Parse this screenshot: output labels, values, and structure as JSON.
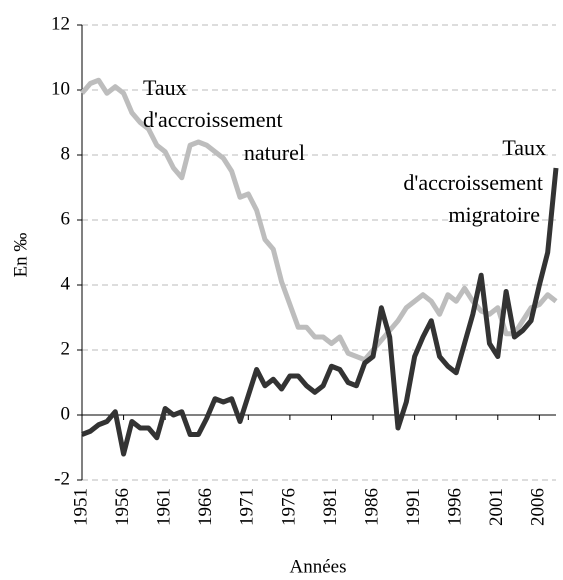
{
  "chart_data": {
    "type": "line",
    "xlabel": "Années",
    "ylabel": "En ‰",
    "x": [
      1951,
      1952,
      1953,
      1954,
      1955,
      1956,
      1957,
      1958,
      1959,
      1960,
      1961,
      1962,
      1963,
      1964,
      1965,
      1966,
      1967,
      1968,
      1969,
      1970,
      1971,
      1972,
      1973,
      1974,
      1975,
      1976,
      1977,
      1978,
      1979,
      1980,
      1981,
      1982,
      1983,
      1984,
      1985,
      1986,
      1987,
      1988,
      1989,
      1990,
      1991,
      1992,
      1993,
      1994,
      1995,
      1996,
      1997,
      1998,
      1999,
      2000,
      2001,
      2002,
      2003,
      2004,
      2005,
      2006,
      2007,
      2008
    ],
    "series": [
      {
        "color": "#bdbdbd",
        "values": [
          9.9,
          10.2,
          10.3,
          9.9,
          10.1,
          9.9,
          9.3,
          9.0,
          8.8,
          8.3,
          8.1,
          7.6,
          7.3,
          8.3,
          8.4,
          8.3,
          8.1,
          7.9,
          7.5,
          6.7,
          6.8,
          6.3,
          5.4,
          5.1,
          4.1,
          3.4,
          2.7,
          2.7,
          2.4,
          2.4,
          2.2,
          2.4,
          1.9,
          1.8,
          1.7,
          2.0,
          2.3,
          2.6,
          2.9,
          3.3,
          3.5,
          3.7,
          3.5,
          3.1,
          3.7,
          3.5,
          3.9,
          3.5,
          3.2,
          3.1,
          3.3,
          2.5,
          2.5,
          2.9,
          3.3,
          3.4,
          3.7,
          3.5
        ]
      },
      {
        "color": "#333333",
        "values": [
          -0.6,
          -0.5,
          -0.3,
          -0.2,
          0.1,
          -1.2,
          -0.2,
          -0.4,
          -0.4,
          -0.7,
          0.2,
          0.0,
          0.1,
          -0.6,
          -0.6,
          -0.1,
          0.5,
          0.4,
          0.5,
          -0.2,
          0.6,
          1.4,
          0.9,
          1.1,
          0.8,
          1.2,
          1.2,
          0.9,
          0.7,
          0.9,
          1.5,
          1.4,
          1.0,
          0.9,
          1.6,
          1.8,
          3.3,
          2.4,
          -0.4,
          0.4,
          1.8,
          2.4,
          2.9,
          1.8,
          1.5,
          1.3,
          2.2,
          3.1,
          4.3,
          2.2,
          1.8,
          3.8,
          2.4,
          2.6,
          2.9,
          4.0,
          5.0,
          7.6
        ]
      }
    ],
    "annotations": [
      {
        "lines": [
          "Taux",
          "d'accroissement",
          "naturel"
        ]
      },
      {
        "lines": [
          "Taux",
          "d'accroissement",
          "migratoire"
        ]
      }
    ],
    "xlim": [
      1951,
      2008
    ],
    "xticks": [
      1951,
      1956,
      1961,
      1966,
      1971,
      1976,
      1981,
      1986,
      1991,
      1996,
      2001,
      2006
    ],
    "ylim": [
      -2,
      12
    ],
    "yticks": [
      -2,
      0,
      2,
      4,
      6,
      8,
      10,
      12
    ],
    "grid": true
  }
}
